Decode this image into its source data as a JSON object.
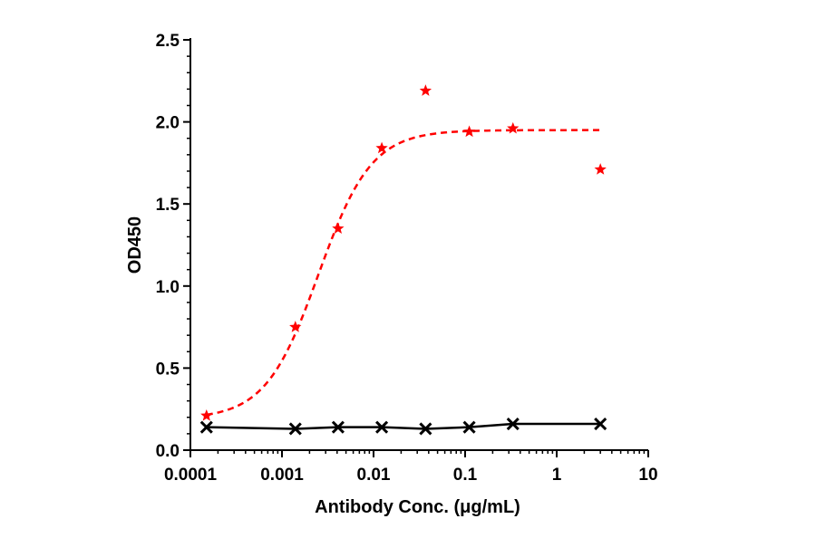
{
  "chart_data": {
    "type": "scatter",
    "xlabel": "Antibody Conc. (μg/mL)",
    "ylabel": "OD450",
    "x_scale": "log",
    "xlim": [
      0.0001,
      10
    ],
    "ylim": [
      0,
      2.5
    ],
    "x_ticks": [
      0.0001,
      0.001,
      0.01,
      0.1,
      1,
      10
    ],
    "x_tick_labels": [
      "0.0001",
      "0.001",
      "0.01",
      "0.1",
      "1",
      "10"
    ],
    "y_ticks": [
      0,
      0.5,
      1.0,
      1.5,
      2.0,
      2.5
    ],
    "y_tick_labels": [
      "0.0",
      "0.5",
      "1.0",
      "1.5",
      "2.0",
      "2.5"
    ],
    "grid": false,
    "series": [
      {
        "marker": "star",
        "color": "#ff0000",
        "line": "dashed-fit",
        "x": [
          0.00015,
          0.0014,
          0.0041,
          0.0123,
          0.037,
          0.111,
          0.333,
          3.0
        ],
        "y": [
          0.21,
          0.75,
          1.35,
          1.84,
          2.19,
          1.94,
          1.96,
          1.71
        ],
        "fit": {
          "bottom": 0.19,
          "top": 1.95,
          "ec50": 0.0025,
          "hill": 1.5
        }
      },
      {
        "marker": "x",
        "color": "#000000",
        "line": "solid",
        "x": [
          0.00015,
          0.0014,
          0.0041,
          0.0123,
          0.037,
          0.111,
          0.333,
          3.0
        ],
        "y": [
          0.14,
          0.13,
          0.14,
          0.14,
          0.13,
          0.14,
          0.16,
          0.16
        ]
      }
    ]
  }
}
